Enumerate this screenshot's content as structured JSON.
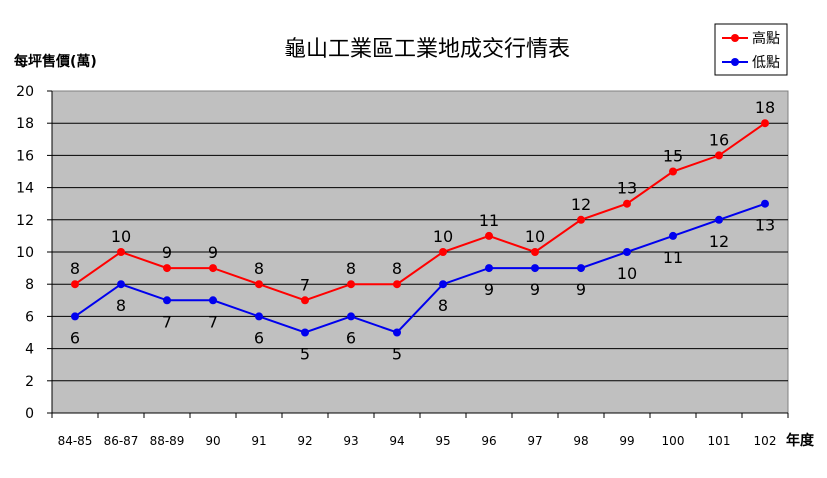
{
  "chart_data": {
    "type": "line",
    "title": "龜山工業區工業地成交行情表",
    "ylabel": "每坪售價(萬)",
    "xlabel": "年度",
    "categories": [
      "84-85",
      "86-87",
      "88-89",
      "90",
      "91",
      "92",
      "93",
      "94",
      "95",
      "96",
      "97",
      "98",
      "99",
      "100",
      "101",
      "102"
    ],
    "ylim": [
      0,
      20
    ],
    "yticks": [
      0,
      2,
      4,
      6,
      8,
      10,
      12,
      14,
      16,
      18,
      20
    ],
    "grid": true,
    "legend": "top-right",
    "series": [
      {
        "name": "高點",
        "color": "#ff0000",
        "values": [
          8,
          10,
          9,
          9,
          8,
          7,
          8,
          8,
          10,
          11,
          10,
          12,
          13,
          15,
          16,
          18
        ],
        "label_position": "above"
      },
      {
        "name": "低點",
        "color": "#0000ee",
        "values": [
          6,
          8,
          7,
          7,
          6,
          5,
          6,
          5,
          8,
          9,
          9,
          9,
          10,
          11,
          12,
          13
        ],
        "label_position": "below"
      }
    ],
    "plot_background": "#c0c0c0"
  }
}
